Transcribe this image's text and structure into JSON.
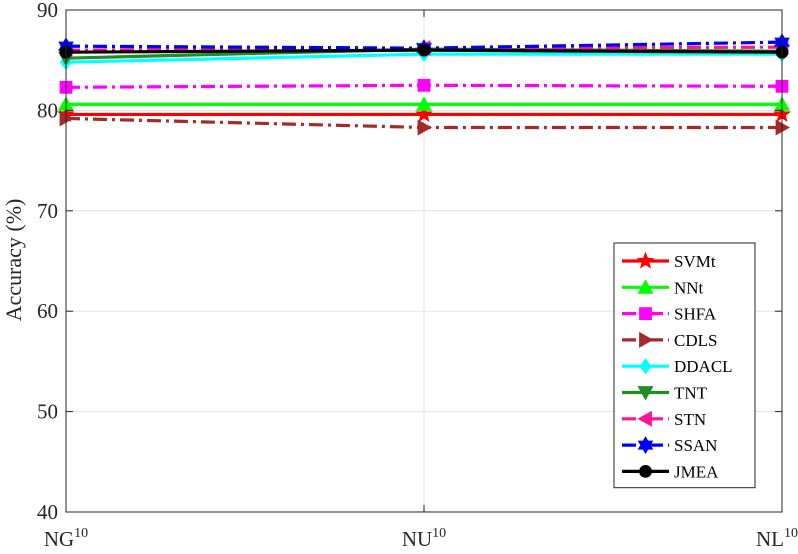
{
  "chart_data": {
    "type": "line",
    "title": "",
    "xlabel": "",
    "ylabel": "Accuracy (%)",
    "categories": [
      {
        "base": "NG",
        "sup": "10"
      },
      {
        "base": "NU",
        "sup": "10"
      },
      {
        "base": "NL",
        "sup": "10"
      }
    ],
    "ylim": [
      40,
      90
    ],
    "yticks": [
      40,
      50,
      60,
      70,
      80,
      90
    ],
    "grid": true,
    "legend_position": "bottom-right",
    "series": [
      {
        "name": "SVMt",
        "values": [
          79.6,
          79.6,
          79.6
        ],
        "color": "#ff0000",
        "dash": "solid",
        "marker": "star"
      },
      {
        "name": "NNt",
        "values": [
          80.6,
          80.6,
          80.6
        ],
        "color": "#00ff00",
        "dash": "solid",
        "marker": "triangle-up"
      },
      {
        "name": "SHFA",
        "values": [
          82.3,
          82.5,
          82.4
        ],
        "color": "#ff00ff",
        "dash": "dashdot",
        "marker": "square"
      },
      {
        "name": "CDLS",
        "values": [
          79.2,
          78.3,
          78.3
        ],
        "color": "#a52a2a",
        "dash": "dashdot",
        "marker": "triangle-right"
      },
      {
        "name": "DDACL",
        "values": [
          84.8,
          85.6,
          85.6
        ],
        "color": "#00ffff",
        "dash": "solid",
        "marker": "diamond"
      },
      {
        "name": "TNT",
        "values": [
          85.2,
          86.1,
          85.9
        ],
        "color": "#228b22",
        "dash": "solid",
        "marker": "triangle-down"
      },
      {
        "name": "STN",
        "values": [
          86.0,
          86.2,
          86.3
        ],
        "color": "#ff1493",
        "dash": "dashdot",
        "marker": "triangle-left"
      },
      {
        "name": "SSAN",
        "values": [
          86.4,
          86.2,
          86.8
        ],
        "color": "#0000ff",
        "dash": "dashdot",
        "marker": "hexagram"
      },
      {
        "name": "JMEA",
        "values": [
          85.8,
          86.0,
          85.8
        ],
        "color": "#000000",
        "dash": "solid",
        "marker": "circle"
      }
    ]
  }
}
